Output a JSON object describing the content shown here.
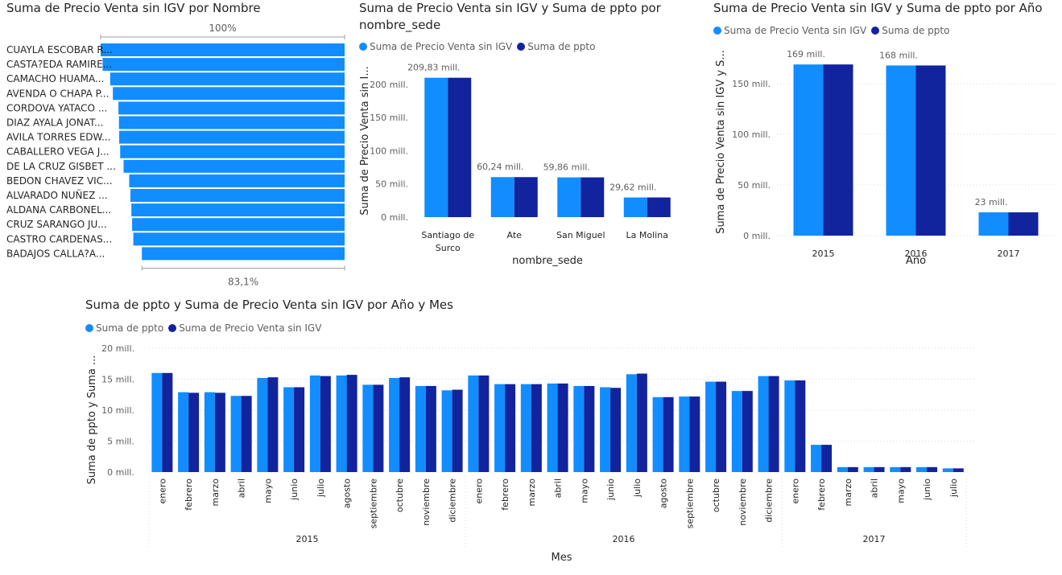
{
  "colors": {
    "series_a": "#118dff",
    "series_b": "#12239e",
    "grid": "#d9d9d9",
    "axis_text": "#605e5c"
  },
  "chart_data": [
    {
      "id": "funnel",
      "type": "bar",
      "orientation": "horizontal",
      "title": "Suma de Precio Venta sin IGV por Nombre",
      "top_label": "100%",
      "bottom_label": "83,1%",
      "categories": [
        "CUAYLA ESCOBAR R...",
        "CASTA?EDA RAMIRE...",
        "CAMACHO HUAMA...",
        "AVENDA O CHAPA P...",
        "CORDOVA YATACO ...",
        "DIAZ AYALA JONAT...",
        "AVILA TORRES EDW...",
        "CABALLERO VEGA J...",
        "DE LA CRUZ GISBET ...",
        "BEDON CHAVEZ VIC...",
        "ALVARADO NUÑEZ ...",
        "ALDANA CARBONEL...",
        "CRUZ SARANGO JU...",
        "CASTRO CARDENAS...",
        "BADAJOS CALLA?A..."
      ],
      "values": [
        100,
        99.2,
        96.1,
        95.0,
        92.7,
        92.5,
        92.4,
        92.0,
        90.6,
        88.3,
        87.8,
        87.4,
        87.1,
        86.6,
        83.1
      ],
      "grid": false
    },
    {
      "id": "sede",
      "type": "bar",
      "title": "Suma de Precio Venta sin IGV y Suma de ppto por nombre_sede",
      "xlabel": "nombre_sede",
      "ylabel": "Suma de Precio Venta sin I...",
      "categories": [
        "Santiago de Surco",
        "Ate",
        "San Miguel",
        "La Molina"
      ],
      "series": [
        {
          "name": "Suma de Precio Venta sin IGV",
          "values": [
            209.83,
            60.24,
            59.86,
            29.62
          ]
        },
        {
          "name": "Suma de ppto",
          "values": [
            209.83,
            60.24,
            59.86,
            29.62
          ]
        }
      ],
      "data_labels": [
        "209,83 mill.",
        "60,24 mill.",
        "59,86 mill.",
        "29,62 mill."
      ],
      "yticks": [
        0,
        50,
        100,
        150,
        200
      ],
      "ytick_labels": [
        "0 mill.",
        "50 mill.",
        "100 mill.",
        "150 mill.",
        "200 mill."
      ],
      "ylim": [
        0,
        230
      ],
      "grid": false
    },
    {
      "id": "anio",
      "type": "bar",
      "title": "Suma de Precio Venta sin IGV y Suma de ppto por Año",
      "xlabel": "Año",
      "ylabel": "Suma de Precio Venta sin IGV y S...",
      "categories": [
        "2015",
        "2016",
        "2017"
      ],
      "series": [
        {
          "name": "Suma de Precio Venta sin IGV",
          "values": [
            169,
            168,
            23
          ]
        },
        {
          "name": "Suma de ppto",
          "values": [
            169,
            168,
            23
          ]
        }
      ],
      "data_labels": [
        "169 mill.",
        "168 mill.",
        "23 mill."
      ],
      "yticks": [
        0,
        50,
        100,
        150
      ],
      "ytick_labels": [
        "0 mill.",
        "50 mill.",
        "100 mill.",
        "150 mill."
      ],
      "ylim": [
        0,
        185
      ],
      "grid": true
    },
    {
      "id": "mes",
      "type": "bar",
      "title": "Suma de ppto y Suma de Precio Venta sin IGV por Año y Mes",
      "xlabel": "Mes",
      "ylabel": "Suma de ppto y Suma ...",
      "groups": [
        {
          "label": "2015",
          "months": [
            "enero",
            "febrero",
            "marzo",
            "abril",
            "mayo",
            "junio",
            "julio",
            "agosto",
            "septiembre",
            "octubre",
            "noviembre",
            "diciembre"
          ]
        },
        {
          "label": "2016",
          "months": [
            "enero",
            "febrero",
            "marzo",
            "abril",
            "mayo",
            "junio",
            "julio",
            "agosto",
            "septiembre",
            "octubre",
            "noviembre",
            "diciembre"
          ]
        },
        {
          "label": "2017",
          "months": [
            "enero",
            "febrero",
            "marzo",
            "abril",
            "mayo",
            "junio",
            "julio"
          ]
        }
      ],
      "series": [
        {
          "name": "Suma de ppto",
          "values": [
            16.0,
            12.9,
            12.9,
            12.3,
            15.2,
            13.7,
            15.6,
            15.6,
            14.1,
            15.2,
            13.9,
            13.2,
            15.6,
            14.2,
            14.2,
            14.3,
            13.9,
            13.7,
            15.8,
            12.1,
            12.2,
            14.6,
            13.1,
            15.5,
            14.8,
            4.4,
            0.8,
            0.8,
            0.8,
            0.8,
            0.6
          ]
        },
        {
          "name": "Suma de Precio Venta sin IGV",
          "values": [
            16.0,
            12.8,
            12.8,
            12.3,
            15.3,
            13.7,
            15.5,
            15.7,
            14.1,
            15.3,
            13.9,
            13.3,
            15.6,
            14.2,
            14.2,
            14.3,
            13.9,
            13.6,
            15.9,
            12.1,
            12.2,
            14.6,
            13.1,
            15.5,
            14.8,
            4.4,
            0.8,
            0.8,
            0.8,
            0.8,
            0.6
          ]
        }
      ],
      "yticks": [
        0,
        5,
        10,
        15,
        20
      ],
      "ytick_labels": [
        "0 mill.",
        "5 mill.",
        "10 mill.",
        "15 mill.",
        "20 mill."
      ],
      "ylim": [
        0,
        20
      ],
      "grid": true
    }
  ]
}
